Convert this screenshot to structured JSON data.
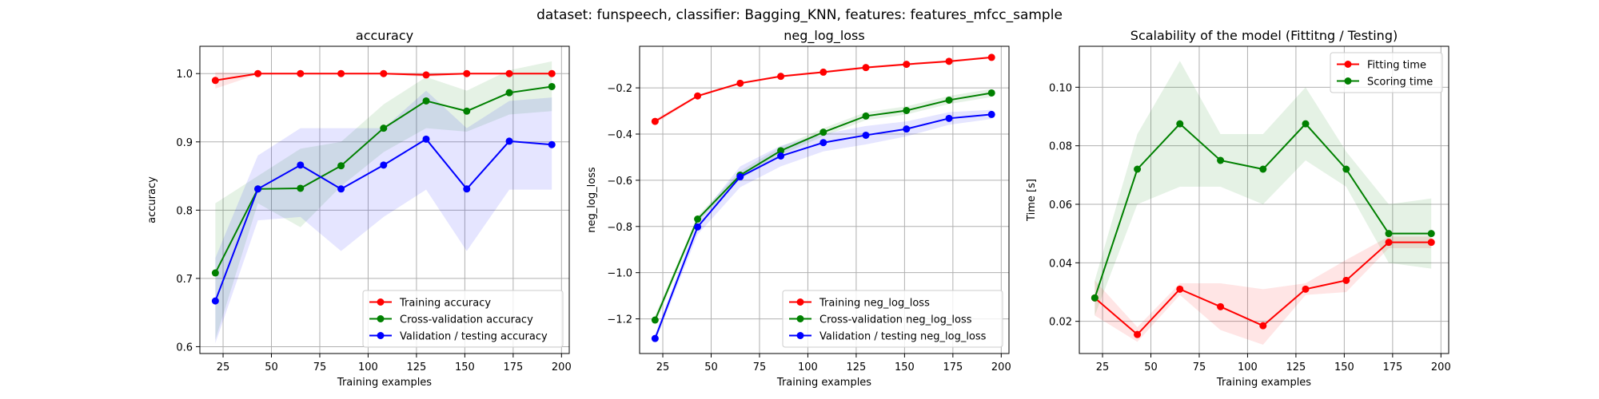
{
  "suptitle": "dataset: funspeech, classifier: Bagging_KNN, features: features_mfcc_sample",
  "colors": {
    "training": "#ff0000",
    "cv": "#008000",
    "validation": "#0000ff",
    "grid": "#b0b0b0"
  },
  "chart_data": [
    {
      "type": "line",
      "title": "accuracy",
      "xlabel": "Training examples",
      "ylabel": "accuracy",
      "xlim": [
        13,
        204
      ],
      "ylim": [
        0.59,
        1.04
      ],
      "xticks": [
        25,
        50,
        75,
        100,
        125,
        150,
        175,
        200
      ],
      "yticks": [
        0.6,
        0.7,
        0.8,
        0.9,
        1.0
      ],
      "ytick_labels": [
        "0.6",
        "0.7",
        "0.8",
        "0.9",
        "1.0"
      ],
      "grid": true,
      "legend": "lower-right",
      "x": [
        21,
        43,
        65,
        86,
        108,
        130,
        151,
        173,
        195
      ],
      "series": [
        {
          "name": "Training accuracy",
          "color": "#ff0000",
          "values": [
            0.99,
            1.0,
            1.0,
            1.0,
            1.0,
            0.998,
            1.0,
            1.0,
            1.0
          ],
          "band_low": [
            0.978,
            0.999,
            0.999,
            0.999,
            0.999,
            0.995,
            0.999,
            0.999,
            0.999
          ],
          "band_high": [
            1.002,
            1.001,
            1.001,
            1.001,
            1.001,
            1.001,
            1.001,
            1.001,
            1.001
          ]
        },
        {
          "name": "Cross-validation accuracy",
          "color": "#008000",
          "values": [
            0.708,
            0.831,
            0.832,
            0.865,
            0.92,
            0.96,
            0.945,
            0.972,
            0.981
          ],
          "band_low": [
            0.61,
            0.81,
            0.775,
            0.835,
            0.885,
            0.92,
            0.915,
            0.94,
            0.945
          ],
          "band_high": [
            0.81,
            0.85,
            0.89,
            0.9,
            0.955,
            0.995,
            0.975,
            1.005,
            1.018
          ]
        },
        {
          "name": "Validation / testing accuracy",
          "color": "#0000ff",
          "values": [
            0.667,
            0.831,
            0.866,
            0.831,
            0.866,
            0.904,
            0.831,
            0.901,
            0.896
          ],
          "band_low": [
            0.605,
            0.785,
            0.79,
            0.74,
            0.79,
            0.83,
            0.74,
            0.83,
            0.83
          ],
          "band_high": [
            0.73,
            0.88,
            0.92,
            0.92,
            0.92,
            0.975,
            0.92,
            0.96,
            0.965
          ]
        }
      ]
    },
    {
      "type": "line",
      "title": "neg_log_loss",
      "xlabel": "Training examples",
      "ylabel": "neg_log_loss",
      "xlim": [
        13,
        204
      ],
      "ylim": [
        -1.35,
        -0.02
      ],
      "xticks": [
        25,
        50,
        75,
        100,
        125,
        150,
        175,
        200
      ],
      "yticks": [
        -1.2,
        -1.0,
        -0.8,
        -0.6,
        -0.4,
        -0.2
      ],
      "ytick_labels": [
        "−1.2",
        "−1.0",
        "−0.8",
        "−0.6",
        "−0.4",
        "−0.2"
      ],
      "grid": true,
      "legend": "lower-right",
      "x": [
        21,
        43,
        65,
        86,
        108,
        130,
        151,
        173,
        195
      ],
      "series": [
        {
          "name": "Training neg_log_loss",
          "color": "#ff0000",
          "values": [
            -0.345,
            -0.235,
            -0.18,
            -0.15,
            -0.132,
            -0.112,
            -0.098,
            -0.085,
            -0.068
          ],
          "band_low": [
            -0.355,
            -0.24,
            -0.185,
            -0.155,
            -0.137,
            -0.117,
            -0.103,
            -0.09,
            -0.073
          ],
          "band_high": [
            -0.335,
            -0.23,
            -0.175,
            -0.145,
            -0.127,
            -0.107,
            -0.093,
            -0.08,
            -0.063
          ]
        },
        {
          "name": "Cross-validation neg_log_loss",
          "color": "#008000",
          "values": [
            -1.205,
            -0.768,
            -0.578,
            -0.472,
            -0.392,
            -0.322,
            -0.298,
            -0.253,
            -0.222
          ],
          "band_low": [
            -1.225,
            -0.78,
            -0.595,
            -0.49,
            -0.41,
            -0.34,
            -0.315,
            -0.27,
            -0.24
          ],
          "band_high": [
            -1.185,
            -0.755,
            -0.56,
            -0.455,
            -0.375,
            -0.305,
            -0.28,
            -0.235,
            -0.205
          ]
        },
        {
          "name": "Validation / testing neg_log_loss",
          "color": "#0000ff",
          "values": [
            -1.285,
            -0.802,
            -0.585,
            -0.495,
            -0.437,
            -0.405,
            -0.378,
            -0.332,
            -0.315
          ],
          "band_low": [
            -1.3,
            -0.835,
            -0.63,
            -0.54,
            -0.475,
            -0.445,
            -0.41,
            -0.36,
            -0.335
          ],
          "band_high": [
            -1.27,
            -0.77,
            -0.54,
            -0.45,
            -0.4,
            -0.365,
            -0.345,
            -0.305,
            -0.295
          ]
        }
      ]
    },
    {
      "type": "line",
      "title": "Scalability of the model (Fittitng / Testing)",
      "xlabel": "Training examples",
      "ylabel": "Time [s]",
      "xlim": [
        13,
        204
      ],
      "ylim": [
        0.009,
        0.114
      ],
      "xticks": [
        25,
        50,
        75,
        100,
        125,
        150,
        175,
        200
      ],
      "yticks": [
        0.02,
        0.04,
        0.06,
        0.08,
        0.1
      ],
      "ytick_labels": [
        "0.02",
        "0.04",
        "0.06",
        "0.08",
        "0.10"
      ],
      "grid": true,
      "legend": "upper-right",
      "x": [
        21,
        43,
        65,
        86,
        108,
        130,
        151,
        173,
        195
      ],
      "series": [
        {
          "name": "Fitting time",
          "color": "#ff0000",
          "values": [
            0.028,
            0.0155,
            0.031,
            0.025,
            0.0185,
            0.031,
            0.034,
            0.047,
            0.047
          ],
          "band_low": [
            0.022,
            0.013,
            0.029,
            0.017,
            0.012,
            0.029,
            0.03,
            0.045,
            0.045
          ],
          "band_high": [
            0.034,
            0.018,
            0.033,
            0.033,
            0.031,
            0.033,
            0.041,
            0.049,
            0.049
          ]
        },
        {
          "name": "Scoring time",
          "color": "#008000",
          "values": [
            0.028,
            0.072,
            0.0875,
            0.075,
            0.072,
            0.0875,
            0.072,
            0.05,
            0.05
          ],
          "band_low": [
            0.022,
            0.06,
            0.066,
            0.066,
            0.06,
            0.075,
            0.066,
            0.04,
            0.038
          ],
          "band_high": [
            0.034,
            0.084,
            0.109,
            0.084,
            0.084,
            0.1,
            0.078,
            0.06,
            0.062
          ]
        }
      ]
    }
  ]
}
